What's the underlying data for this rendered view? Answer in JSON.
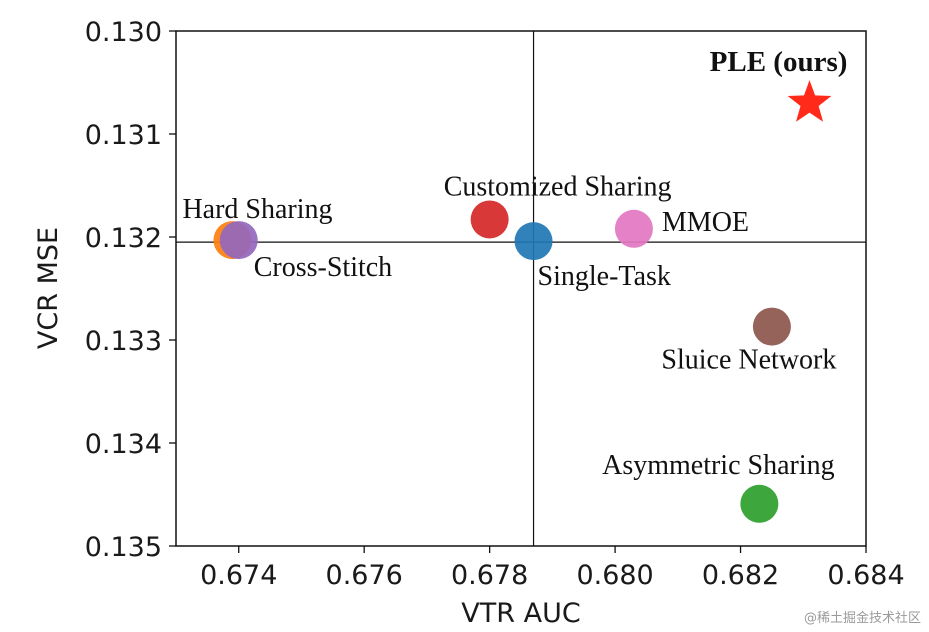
{
  "chart_data": {
    "type": "scatter",
    "xlabel": "VTR AUC",
    "ylabel": "VCR MSE",
    "xlim": [
      0.673,
      0.684
    ],
    "ylim": [
      0.13,
      0.135
    ],
    "y_inverted": true,
    "x_ticks": [
      "0.674",
      "0.676",
      "0.678",
      "0.680",
      "0.682",
      "0.684"
    ],
    "y_ticks": [
      "0.130",
      "0.131",
      "0.132",
      "0.133",
      "0.134",
      "0.135"
    ],
    "grid": false,
    "reference_lines": {
      "x": 0.6787,
      "y": 0.13205
    },
    "points": [
      {
        "label": "Hard Sharing",
        "x": 0.6739,
        "y": 0.13203,
        "color": "#ff7f0e",
        "marker": "circle"
      },
      {
        "label": "Cross-Stitch",
        "x": 0.674,
        "y": 0.13203,
        "color": "#9467bd",
        "marker": "circle"
      },
      {
        "label": "Customized Sharing",
        "x": 0.678,
        "y": 0.13183,
        "color": "#d62728",
        "marker": "circle"
      },
      {
        "label": "Single-Task",
        "x": 0.6787,
        "y": 0.13204,
        "color": "#1f77b4",
        "marker": "circle"
      },
      {
        "label": "MMOE",
        "x": 0.6803,
        "y": 0.13192,
        "color": "#e377c2",
        "marker": "circle"
      },
      {
        "label": "Sluice Network",
        "x": 0.6825,
        "y": 0.13287,
        "color": "#8c564b",
        "marker": "circle"
      },
      {
        "label": "Asymmetric Sharing",
        "x": 0.6823,
        "y": 0.13459,
        "color": "#2ca02c",
        "marker": "circle"
      },
      {
        "label": "PLE (ours)",
        "x": 0.6831,
        "y": 0.1307,
        "color": "#ff2a1a",
        "marker": "star"
      }
    ]
  },
  "watermark": "@稀土掘金技术社区"
}
